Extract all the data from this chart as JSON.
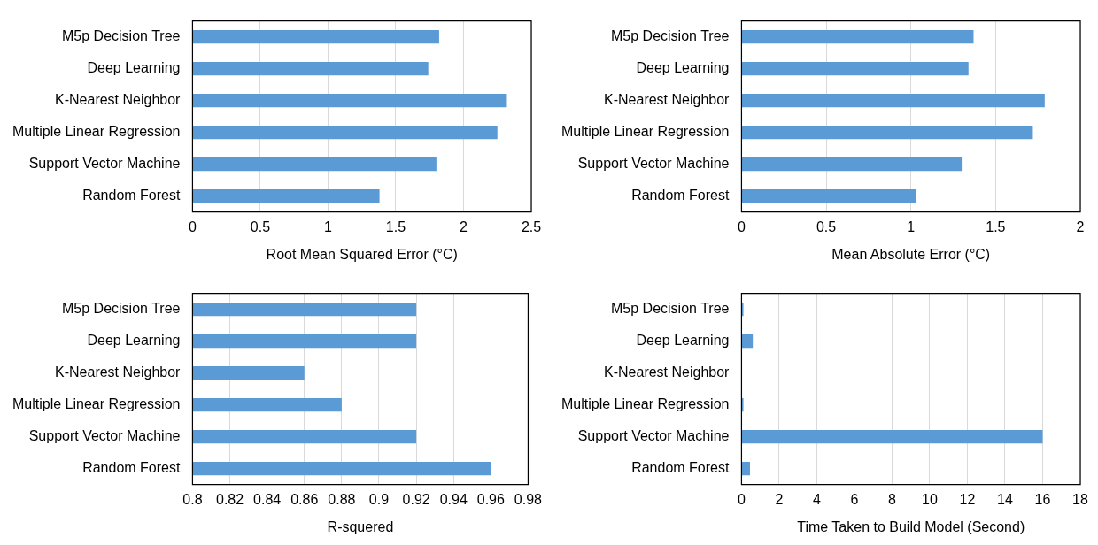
{
  "chart_data": [
    {
      "type": "bar",
      "orientation": "horizontal",
      "categories": [
        "M5p Decision Tree",
        "Deep Learning",
        "K-Nearest Neighbor",
        "Multiple Linear Regression",
        "Support Vector Machine",
        "Random Forest"
      ],
      "values": [
        1.82,
        1.74,
        2.32,
        2.25,
        1.8,
        1.38
      ],
      "color": "#5b9bd5",
      "xlabel": "Root Mean Squared Error (°C)",
      "xlim": [
        0,
        2.5
      ],
      "xticks": [
        0,
        0.5,
        1,
        1.5,
        2,
        2.5
      ],
      "grid": "x"
    },
    {
      "type": "bar",
      "orientation": "horizontal",
      "categories": [
        "M5p Decision Tree",
        "Deep Learning",
        "K-Nearest Neighbor",
        "Multiple Linear Regression",
        "Support Vector Machine",
        "Random Forest"
      ],
      "values": [
        1.37,
        1.34,
        1.79,
        1.72,
        1.3,
        1.03
      ],
      "color": "#5b9bd5",
      "xlabel": "Mean Absolute Error (°C)",
      "xlim": [
        0,
        2
      ],
      "xticks": [
        0,
        0.5,
        1,
        1.5,
        2
      ],
      "grid": "x"
    },
    {
      "type": "bar",
      "orientation": "horizontal",
      "categories": [
        "M5p Decision Tree",
        "Deep Learning",
        "K-Nearest Neighbor",
        "Multiple Linear Regression",
        "Support Vector Machine",
        "Random Forest"
      ],
      "values": [
        0.92,
        0.92,
        0.86,
        0.88,
        0.92,
        0.96
      ],
      "color": "#5b9bd5",
      "xlabel": "R-squered",
      "xlim": [
        0.8,
        0.98
      ],
      "xticks": [
        0.8,
        0.82,
        0.84,
        0.86,
        0.88,
        0.9,
        0.92,
        0.94,
        0.96,
        0.98
      ],
      "grid": "x"
    },
    {
      "type": "bar",
      "orientation": "horizontal",
      "categories": [
        "M5p Decision Tree",
        "Deep Learning",
        "K-Nearest Neighbor",
        "Multiple Linear Regression",
        "Support Vector Machine",
        "Random Forest"
      ],
      "values": [
        0.1,
        0.6,
        0,
        0.1,
        16.0,
        0.45
      ],
      "color": "#5b9bd5",
      "xlabel": "Time Taken to Build Model (Second)",
      "xlim": [
        0,
        18
      ],
      "xticks": [
        0,
        2,
        4,
        6,
        8,
        10,
        12,
        14,
        16,
        18
      ],
      "grid": "x"
    }
  ]
}
